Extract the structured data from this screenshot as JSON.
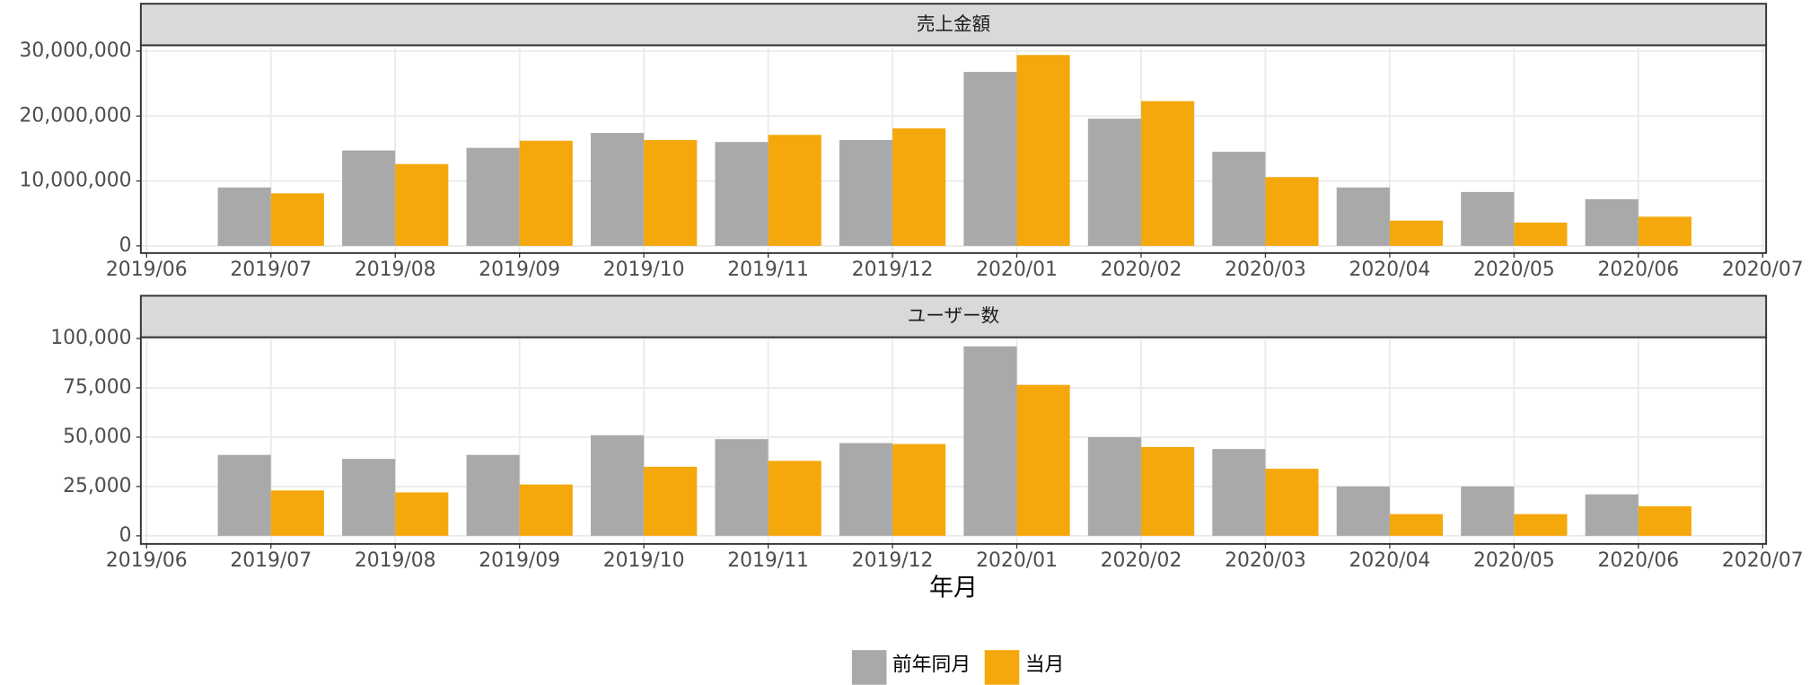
{
  "chart_data": [
    {
      "type": "bar",
      "title": "売上金額",
      "x": [
        "2019/07",
        "2019/08",
        "2019/09",
        "2019/10",
        "2019/11",
        "2019/12",
        "2020/01",
        "2020/02",
        "2020/03",
        "2020/04",
        "2020/05",
        "2020/06"
      ],
      "xticks": [
        "2019/06",
        "2019/07",
        "2019/08",
        "2019/09",
        "2019/10",
        "2019/11",
        "2019/12",
        "2020/01",
        "2020/02",
        "2020/03",
        "2020/04",
        "2020/05",
        "2020/06",
        "2020/07"
      ],
      "series": [
        {
          "name": "前年同月",
          "color": "#a9a9a9",
          "values": [
            9000000,
            14700000,
            15100000,
            17400000,
            16000000,
            16300000,
            26800000,
            19600000,
            14500000,
            9000000,
            8300000,
            7200000
          ]
        },
        {
          "name": "当月",
          "color": "#f5a80c",
          "values": [
            8100000,
            12600000,
            16200000,
            16300000,
            17100000,
            18100000,
            29400000,
            22300000,
            10600000,
            3900000,
            3600000,
            4500000
          ]
        }
      ],
      "ylim": [
        -1100000,
        30900000
      ],
      "yticks": [
        0,
        {
          "value": 10000000,
          "label": "10,000,000"
        },
        {
          "value": 20000000,
          "label": "20,000,000"
        },
        {
          "value": 30000000,
          "label": "30,000,000"
        }
      ],
      "grid": true
    },
    {
      "type": "bar",
      "title": "ユーザー数",
      "x_label": "年月",
      "x": [
        "2019/07",
        "2019/08",
        "2019/09",
        "2019/10",
        "2019/11",
        "2019/12",
        "2020/01",
        "2020/02",
        "2020/03",
        "2020/04",
        "2020/05",
        "2020/06"
      ],
      "xticks": [
        "2019/06",
        "2019/07",
        "2019/08",
        "2019/09",
        "2019/10",
        "2019/11",
        "2019/12",
        "2020/01",
        "2020/02",
        "2020/03",
        "2020/04",
        "2020/05",
        "2020/06",
        "2020/07"
      ],
      "series": [
        {
          "name": "前年同月",
          "color": "#a9a9a9",
          "values": [
            41000,
            39000,
            41000,
            51000,
            49000,
            47000,
            96000,
            50000,
            44000,
            25000,
            25000,
            21000
          ]
        },
        {
          "name": "当月",
          "color": "#f5a80c",
          "values": [
            23000,
            22000,
            26000,
            35000,
            38000,
            46500,
            76500,
            45000,
            34000,
            11000,
            11000,
            15000
          ]
        }
      ],
      "ylim": [
        -4100,
        100600
      ],
      "yticks": [
        0,
        {
          "value": 25000,
          "label": "25,000"
        },
        {
          "value": 50000,
          "label": "50,000"
        },
        {
          "value": 75000,
          "label": "75,000"
        },
        {
          "value": 100000,
          "label": "100,000"
        }
      ],
      "grid": true
    }
  ]
}
